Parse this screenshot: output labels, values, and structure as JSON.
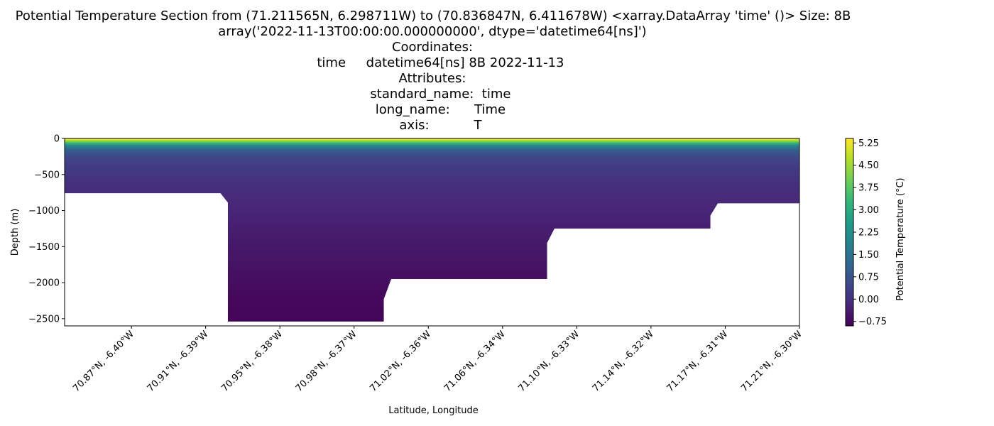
{
  "chart_data": {
    "type": "heatmap",
    "title_lines": [
      "Potential Temperature Section from (71.211565N, 6.298711W) to (70.836847N, 6.411678W) <xarray.DataArray 'time' ()> Size: 8B",
      "array('2022-11-13T00:00:00.000000000', dtype='datetime64[ns]')",
      "Coordinates:",
      "    time     datetime64[ns] 8B 2022-11-13",
      "Attributes:",
      "    standard_name:  time",
      "    long_name:      Time",
      "    axis:           T"
    ],
    "xlabel": "Latitude, Longitude",
    "ylabel": "Depth (m)",
    "ylim": [
      -2600,
      0
    ],
    "y_ticks": [
      0,
      -500,
      -1000,
      -1500,
      -2000,
      -2500
    ],
    "x_ticks": [
      "70.87°N, -6.40°W",
      "70.91°N, -6.39°W",
      "70.95°N, -6.38°W",
      "70.98°N, -6.37°W",
      "71.02°N, -6.36°W",
      "71.06°N, -6.34°W",
      "71.10°N, -6.33°W",
      "71.14°N, -6.32°W",
      "71.17°N, -6.31°W",
      "71.21°N, -6.30°W"
    ],
    "x_range_index": [
      -0.9,
      9
    ],
    "colorbar": {
      "label": "Potential Temperature (°C)",
      "range": [
        -0.9,
        5.4
      ],
      "ticks": [
        5.25,
        4.5,
        3.75,
        3.0,
        2.25,
        1.5,
        0.75,
        0.0,
        -0.75
      ],
      "tick_labels": [
        "5.25",
        "4.50",
        "3.75",
        "3.00",
        "2.25",
        "1.50",
        "0.75",
        "0.00",
        "−0.75"
      ],
      "colormap": "viridis"
    },
    "bottom_profile": [
      {
        "x": -0.9,
        "depth": -760
      },
      {
        "x": 1.2,
        "depth": -760
      },
      {
        "x": 1.3,
        "depth": -890
      },
      {
        "x": 1.3,
        "depth": -2540
      },
      {
        "x": 3.4,
        "depth": -2540
      },
      {
        "x": 3.4,
        "depth": -2230
      },
      {
        "x": 3.5,
        "depth": -1950
      },
      {
        "x": 5.6,
        "depth": -1950
      },
      {
        "x": 5.6,
        "depth": -1450
      },
      {
        "x": 5.7,
        "depth": -1250
      },
      {
        "x": 7.8,
        "depth": -1250
      },
      {
        "x": 7.8,
        "depth": -1070
      },
      {
        "x": 7.9,
        "depth": -900
      },
      {
        "x": 9.0,
        "depth": -900
      }
    ],
    "temperature_profile": [
      {
        "depth": 0,
        "temp": 5.4
      },
      {
        "depth": -30,
        "temp": 4.6
      },
      {
        "depth": -60,
        "temp": 3.4
      },
      {
        "depth": -100,
        "temp": 2.0
      },
      {
        "depth": -160,
        "temp": 1.0
      },
      {
        "depth": -250,
        "temp": 0.5
      },
      {
        "depth": -400,
        "temp": 0.2
      },
      {
        "depth": -600,
        "temp": 0.0
      },
      {
        "depth": -900,
        "temp": -0.2
      },
      {
        "depth": -1300,
        "temp": -0.4
      },
      {
        "depth": -1800,
        "temp": -0.6
      },
      {
        "depth": -2200,
        "temp": -0.75
      },
      {
        "depth": -2600,
        "temp": -0.85
      }
    ]
  }
}
